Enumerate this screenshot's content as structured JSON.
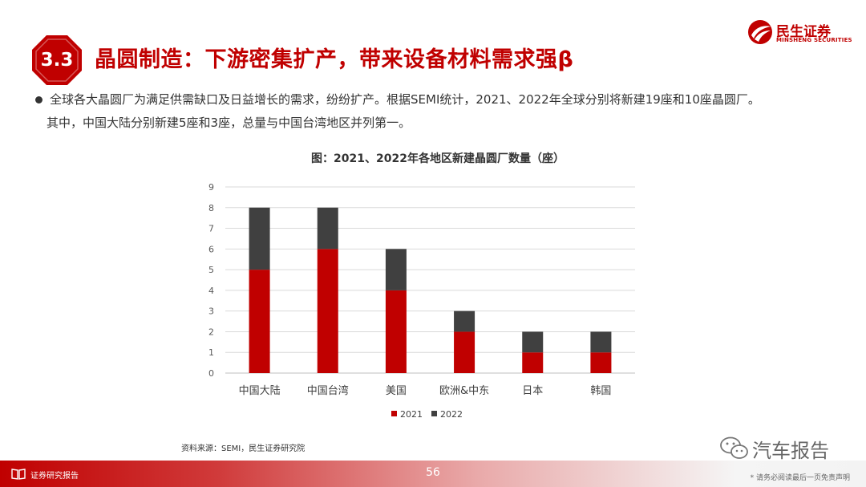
{
  "header": {
    "section_number": "3.3",
    "title": "晶圆制造：下游密集扩产，带来设备材料需求强β"
  },
  "logo": {
    "name_cn": "民生证券",
    "name_en": "MINSHENG SECURITIES"
  },
  "body": {
    "bullet_line1": "全球各大晶圆厂为满足供需缺口及日益增长的需求，纷纷扩产。根据SEMI统计，2021、2022年全球分别将新建19座和10座晶圆厂。",
    "bullet_line2": "其中，中国大陆分别新建5座和3座，总量与中国台湾地区并列第一。"
  },
  "chart_data": {
    "type": "bar",
    "stacked": true,
    "title": "图：2021、2022年各地区新建晶圆厂数量（座）",
    "categories": [
      "中国大陆",
      "中国台湾",
      "美国",
      "欧洲&中东",
      "日本",
      "韩国"
    ],
    "series": [
      {
        "name": "2021",
        "values": [
          5,
          6,
          4,
          2,
          1,
          1
        ],
        "color": "#c00000"
      },
      {
        "name": "2022",
        "values": [
          3,
          2,
          2,
          1,
          1,
          1
        ],
        "color": "#404040"
      }
    ],
    "xlabel": "",
    "ylabel": "",
    "ylim": [
      0,
      9
    ],
    "yticks": [
      0,
      1,
      2,
      3,
      4,
      5,
      6,
      7,
      8,
      9
    ],
    "grid": true,
    "legend": "bottom"
  },
  "source": "资料来源：SEMI，民生证券研究院",
  "watermark": "汽车报告",
  "footer": {
    "label": "证券研究报告",
    "page_number": "56",
    "disclaimer": "* 请务必阅读最后一页免责声明"
  },
  "colors": {
    "brand_red": "#c00000",
    "dark_gray": "#404040"
  }
}
